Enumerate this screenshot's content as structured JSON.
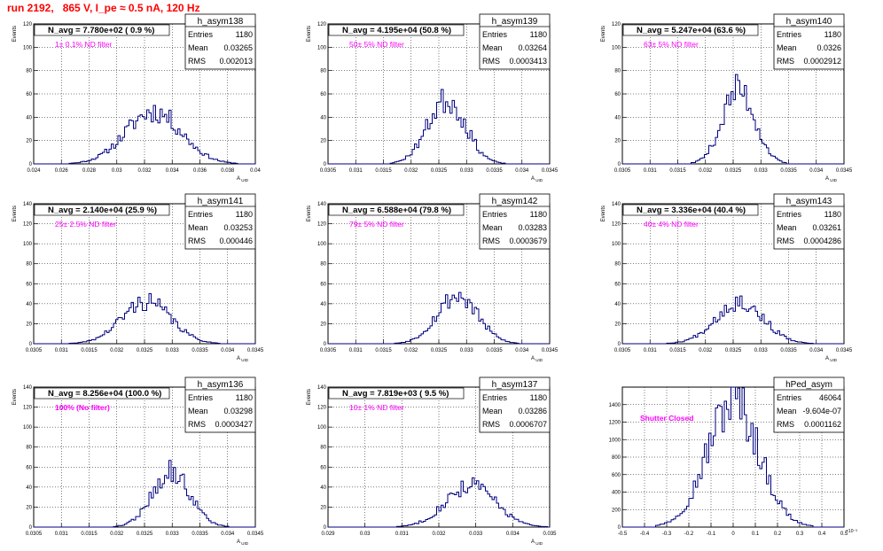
{
  "run_title": "run 2192,   865 V, I_pe ≈ 0.5 nA, 120 Hz",
  "colors": {
    "histogram": "#00007f",
    "filter_label": "#ff00ff",
    "title": "#ff0000",
    "grid": "#000000"
  },
  "axis_label_y": "Events",
  "stat_labels": {
    "entries": "Entries",
    "mean": "Mean",
    "rms": "RMS"
  },
  "chart_data": [
    {
      "type": "histogram",
      "grid": true,
      "legend_placement": "top-right",
      "name": "h_asym138",
      "navg": "N_avg = 7.780e+02 ( 0.9 %)",
      "filter": "1± 0.1% ND filter",
      "entries": "1180",
      "mean": "0.03265",
      "rms": "0.002013",
      "xlabel": "A_UID",
      "ylabel": "Events",
      "xlim": [
        0.024,
        0.04
      ],
      "ylim": [
        0,
        120
      ],
      "xticks": [
        0.024,
        0.026,
        0.028,
        0.03,
        0.032,
        0.034,
        0.036,
        0.038,
        0.04
      ],
      "xtick_labels": [
        "0.024",
        "0.026",
        "0.028",
        "0.03",
        "0.032",
        "0.034",
        "0.036",
        "0.038",
        "0.04"
      ],
      "yticks": [
        0,
        20,
        40,
        60,
        80,
        100,
        120
      ],
      "center": 0.03265,
      "sigma": 0.002013,
      "peak": 45,
      "bins": 100,
      "seed": 11
    },
    {
      "type": "histogram",
      "grid": true,
      "legend_placement": "top-right",
      "name": "h_asym139",
      "navg": "N_avg = 4.195e+04 (50.8 %)",
      "filter": "50± 5% ND filter",
      "entries": "1180",
      "mean": "0.03264",
      "rms": "0.0003413",
      "xlabel": "A_UID",
      "ylabel": "Events",
      "xlim": [
        0.0305,
        0.0345
      ],
      "ylim": [
        0,
        120
      ],
      "xticks": [
        0.0305,
        0.031,
        0.0315,
        0.032,
        0.0325,
        0.033,
        0.0335,
        0.034,
        0.0345
      ],
      "xtick_labels": [
        "0.0305",
        "0.031",
        "0.0315",
        "0.032",
        "0.0325",
        "0.033",
        "0.0335",
        "0.034",
        "0.0345"
      ],
      "yticks": [
        0,
        20,
        40,
        60,
        80,
        100,
        120
      ],
      "center": 0.03264,
      "sigma": 0.0003413,
      "peak": 55,
      "bins": 100,
      "seed": 23
    },
    {
      "type": "histogram",
      "grid": true,
      "legend_placement": "top-right",
      "name": "h_asym140",
      "navg": "N_avg = 5.247e+04 (63.6 %)",
      "filter": "63± 5% ND filter",
      "entries": "1180",
      "mean": "0.0326",
      "rms": "0.0002912",
      "xlabel": "A_UID",
      "ylabel": "Events",
      "xlim": [
        0.0305,
        0.0345
      ],
      "ylim": [
        0,
        120
      ],
      "xticks": [
        0.0305,
        0.031,
        0.0315,
        0.032,
        0.0325,
        0.033,
        0.0335,
        0.034,
        0.0345
      ],
      "xtick_labels": [
        "0.0305",
        "0.031",
        "0.0315",
        "0.032",
        "0.0325",
        "0.033",
        "0.0335",
        "0.034",
        "0.0345"
      ],
      "yticks": [
        0,
        20,
        40,
        60,
        80,
        100,
        120
      ],
      "center": 0.0326,
      "sigma": 0.0002912,
      "peak": 64,
      "bins": 100,
      "seed": 37
    },
    {
      "type": "histogram",
      "grid": true,
      "legend_placement": "top-right",
      "name": "h_asym141",
      "navg": "N_avg = 2.140e+04 (25.9 %)",
      "filter": "25± 2.5% ND filter",
      "entries": "1180",
      "mean": "0.03253",
      "rms": "0.000446",
      "xlabel": "A_UID",
      "ylabel": "Events",
      "xlim": [
        0.0305,
        0.0345
      ],
      "ylim": [
        0,
        140
      ],
      "xticks": [
        0.0305,
        0.031,
        0.0315,
        0.032,
        0.0325,
        0.033,
        0.0335,
        0.034,
        0.0345
      ],
      "xtick_labels": [
        "0.0305",
        "0.031",
        "0.0315",
        "0.032",
        "0.0325",
        "0.033",
        "0.0335",
        "0.034",
        "0.0345"
      ],
      "yticks": [
        0,
        20,
        40,
        60,
        80,
        100,
        120,
        140
      ],
      "center": 0.03253,
      "sigma": 0.000446,
      "peak": 42,
      "bins": 100,
      "seed": 41
    },
    {
      "type": "histogram",
      "grid": true,
      "legend_placement": "top-right",
      "name": "h_asym142",
      "navg": "N_avg = 6.588e+04 (79.8 %)",
      "filter": "79± 5% ND filter",
      "entries": "1180",
      "mean": "0.03283",
      "rms": "0.0003679",
      "xlabel": "A_UID",
      "ylabel": "Events",
      "xlim": [
        0.0305,
        0.0345
      ],
      "ylim": [
        0,
        140
      ],
      "xticks": [
        0.0305,
        0.031,
        0.0315,
        0.032,
        0.0325,
        0.033,
        0.0335,
        0.034,
        0.0345
      ],
      "xtick_labels": [
        "0.0305",
        "0.031",
        "0.0315",
        "0.032",
        "0.0325",
        "0.033",
        "0.0335",
        "0.034",
        "0.0345"
      ],
      "yticks": [
        0,
        20,
        40,
        60,
        80,
        100,
        120,
        140
      ],
      "center": 0.03283,
      "sigma": 0.0003679,
      "peak": 48,
      "bins": 100,
      "seed": 53
    },
    {
      "type": "histogram",
      "grid": true,
      "legend_placement": "top-right",
      "name": "h_asym143",
      "navg": "N_avg = 3.336e+04 (40.4 %)",
      "filter": "40± 4% ND filter",
      "entries": "1180",
      "mean": "0.03261",
      "rms": "0.0004286",
      "xlabel": "A_UID",
      "ylabel": "Events",
      "xlim": [
        0.0305,
        0.0345
      ],
      "ylim": [
        0,
        140
      ],
      "xticks": [
        0.0305,
        0.031,
        0.0315,
        0.032,
        0.0325,
        0.033,
        0.0335,
        0.034,
        0.0345
      ],
      "xtick_labels": [
        "0.0305",
        "0.031",
        "0.0315",
        "0.032",
        "0.0325",
        "0.033",
        "0.0335",
        "0.034",
        "0.0345"
      ],
      "yticks": [
        0,
        20,
        40,
        60,
        80,
        100,
        120,
        140
      ],
      "center": 0.03261,
      "sigma": 0.0004286,
      "peak": 42,
      "bins": 100,
      "seed": 67
    },
    {
      "type": "histogram",
      "grid": true,
      "legend_placement": "top-right",
      "name": "h_asym136",
      "navg": "N_avg = 8.256e+04 (100.0 %)",
      "filter": "100% (No filter)",
      "entries": "1180",
      "mean": "0.03298",
      "rms": "0.0003427",
      "xlabel": "A_UID",
      "ylabel": "Events",
      "xlim": [
        0.0305,
        0.0345
      ],
      "ylim": [
        0,
        140
      ],
      "xticks": [
        0.0305,
        0.031,
        0.0315,
        0.032,
        0.0325,
        0.033,
        0.0335,
        0.034,
        0.0345
      ],
      "xtick_labels": [
        "0.0305",
        "0.031",
        "0.0315",
        "0.032",
        "0.0325",
        "0.033",
        "0.0335",
        "0.034",
        "0.0345"
      ],
      "yticks": [
        0,
        20,
        40,
        60,
        80,
        100,
        120,
        140
      ],
      "center": 0.03298,
      "sigma": 0.0003427,
      "peak": 55,
      "bins": 100,
      "seed": 79
    },
    {
      "type": "histogram",
      "grid": true,
      "legend_placement": "top-right",
      "name": "h_asym137",
      "navg": "N_avg = 7.819e+03 ( 9.5 %)",
      "filter": "10± 1% ND filter",
      "entries": "1180",
      "mean": "0.03286",
      "rms": "0.0006707",
      "xlabel": "A_UID",
      "ylabel": "Events",
      "xlim": [
        0.029,
        0.035
      ],
      "ylim": [
        0,
        140
      ],
      "xticks": [
        0.029,
        0.03,
        0.031,
        0.032,
        0.033,
        0.034,
        0.035
      ],
      "xtick_labels": [
        "0.029",
        "0.03",
        "0.031",
        "0.032",
        "0.033",
        "0.034",
        "0.035"
      ],
      "yticks": [
        0,
        20,
        40,
        60,
        80,
        100,
        120,
        140
      ],
      "center": 0.03286,
      "sigma": 0.0006707,
      "peak": 42,
      "bins": 100,
      "seed": 83
    },
    {
      "type": "histogram",
      "grid": true,
      "legend_placement": "top-right",
      "name": "hPed_asym",
      "navg": "",
      "filter": "Shutter Closed",
      "entries": "46064",
      "mean": "-9.604e-07",
      "rms": "0.0001162",
      "xlabel": "",
      "ylabel": "",
      "xlim": [
        -0.5,
        0.5
      ],
      "ylim": [
        0,
        1600
      ],
      "xticks": [
        -0.5,
        -0.4,
        -0.3,
        -0.2,
        -0.1,
        0,
        0.1,
        0.2,
        0.3,
        0.4,
        0.5
      ],
      "xtick_labels": [
        "-0.5",
        "-0.4",
        "-0.3",
        "-0.2",
        "-0.1",
        "0",
        "0.1",
        "0.2",
        "0.3",
        "0.4",
        "0.5"
      ],
      "yticks": [
        0,
        200,
        400,
        600,
        800,
        1000,
        1200,
        1400
      ],
      "exponent_label": "×10⁻³",
      "center": 0.0,
      "sigma": 0.1162,
      "peak": 1440,
      "bins": 100,
      "seed": 97
    }
  ]
}
